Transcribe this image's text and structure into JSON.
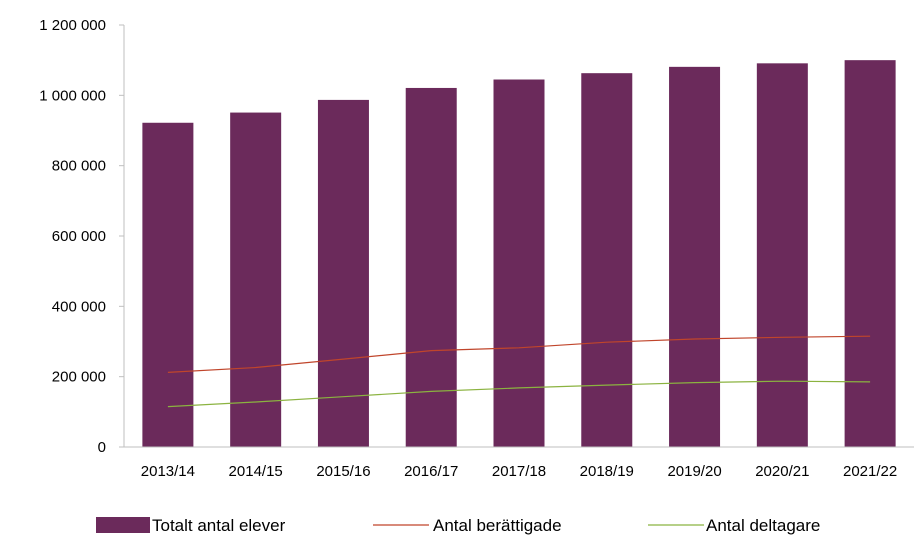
{
  "chart_data": {
    "type": "bar",
    "title": "",
    "xlabel": "",
    "ylabel": "",
    "ylim": [
      0,
      1200000
    ],
    "y_ticks": [
      {
        "value": 0,
        "label": "0"
      },
      {
        "value": 200000,
        "label": "200 000"
      },
      {
        "value": 400000,
        "label": "400 000"
      },
      {
        "value": 600000,
        "label": "600 000"
      },
      {
        "value": 800000,
        "label": "800 000"
      },
      {
        "value": 1000000,
        "label": "1 000 000"
      },
      {
        "value": 1200000,
        "label": "1 200 000"
      }
    ],
    "categories": [
      "2013/14",
      "2014/15",
      "2015/16",
      "2016/17",
      "2017/18",
      "2018/19",
      "2019/20",
      "2020/21",
      "2021/22"
    ],
    "grid": false,
    "legend_position": "bottom",
    "series": [
      {
        "name": "Totalt antal elever",
        "kind": "bar",
        "color": "#6b2a5b",
        "values": [
          922000,
          951000,
          987000,
          1021000,
          1045000,
          1063000,
          1081000,
          1091000,
          1100000
        ]
      },
      {
        "name": "Antal berättigade",
        "kind": "line",
        "color": "#c0452b",
        "values": [
          212000,
          226000,
          250000,
          274000,
          282000,
          298000,
          307000,
          312000,
          315000
        ]
      },
      {
        "name": "Antal deltagare",
        "kind": "line",
        "color": "#8bb340",
        "values": [
          115000,
          128000,
          143000,
          158000,
          168000,
          176000,
          183000,
          187000,
          185000
        ]
      }
    ]
  }
}
